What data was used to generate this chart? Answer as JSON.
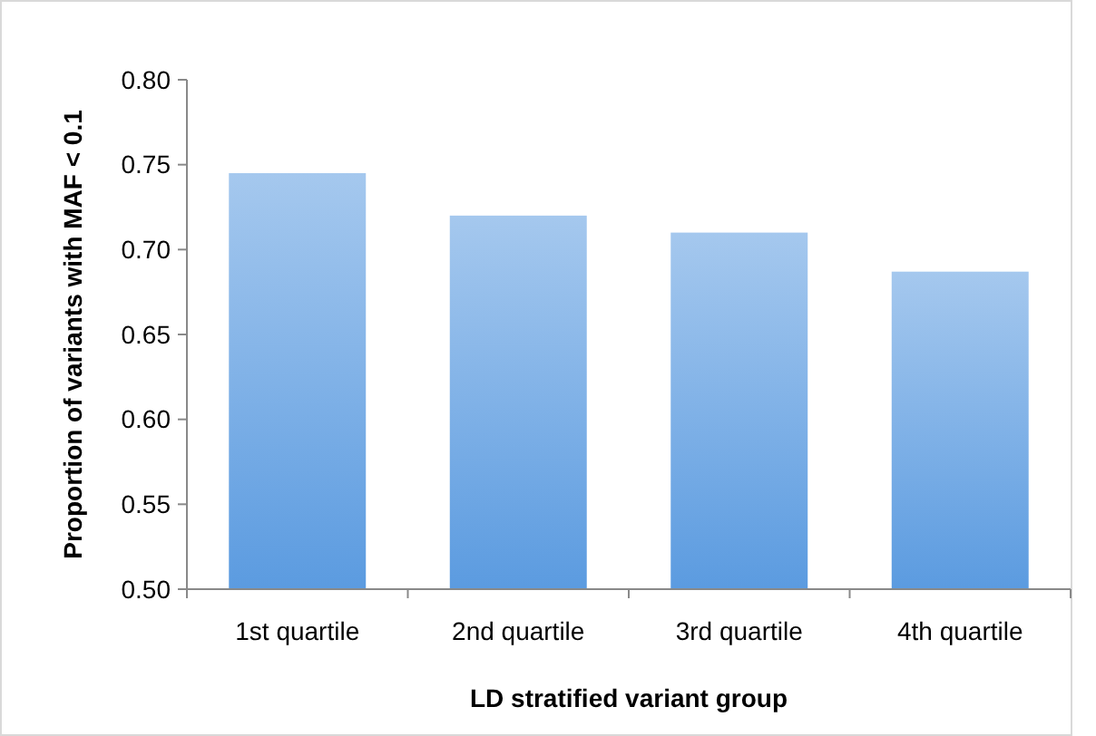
{
  "chart_data": {
    "type": "bar",
    "xlabel": "LD stratified variant group",
    "ylabel": "Proportion of variants with MAF < 0.1",
    "categories": [
      "1st quartile",
      "2nd quartile",
      "3rd quartile",
      "4th quartile"
    ],
    "values": [
      0.745,
      0.72,
      0.71,
      0.687
    ],
    "color": "#5b9be0",
    "ylim": [
      0.5,
      0.8
    ],
    "yticks": [
      {
        "value": 0.5,
        "label": "0.50"
      },
      {
        "value": 0.55,
        "label": "0.55"
      },
      {
        "value": 0.6,
        "label": "0.60"
      },
      {
        "value": 0.65,
        "label": "0.65"
      },
      {
        "value": 0.7,
        "label": "0.70"
      },
      {
        "value": 0.75,
        "label": "0.75"
      },
      {
        "value": 0.8,
        "label": "0.80"
      }
    ],
    "grid": false
  }
}
